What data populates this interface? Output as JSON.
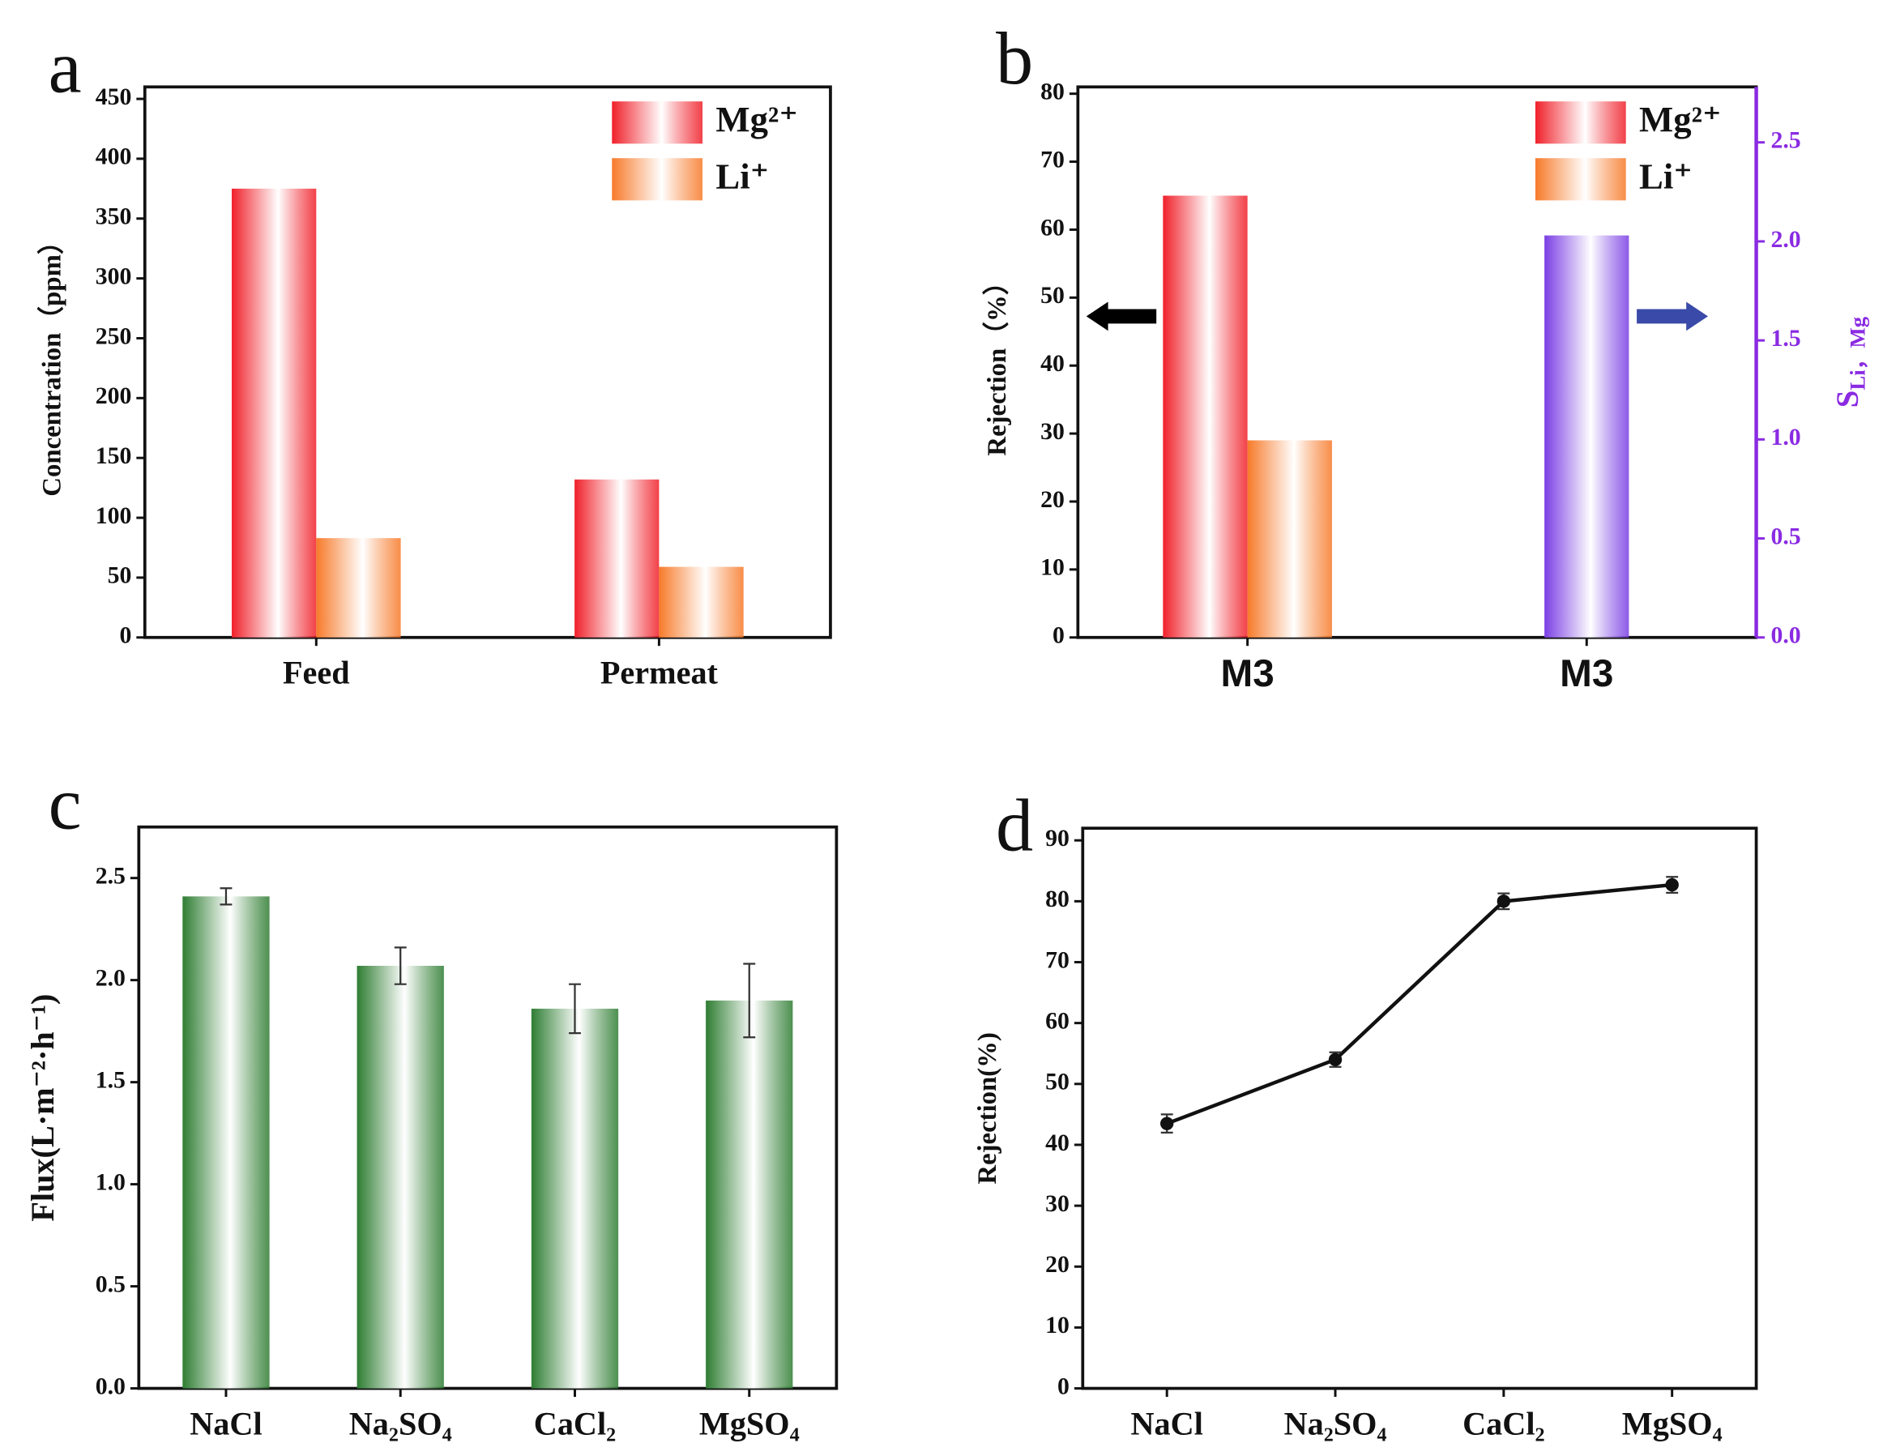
{
  "chart_data": [
    {
      "type": "bar",
      "panel": "a",
      "ylabel": "Concentration（ppm）",
      "categories": [
        "Feed",
        "Permeat"
      ],
      "series": [
        {
          "name": "Mg²⁺",
          "color": "#f0202a",
          "values": [
            375,
            132
          ]
        },
        {
          "name": "Li⁺",
          "color": "#f77a2a",
          "values": [
            83,
            59
          ]
        }
      ],
      "ylim": [
        0,
        460
      ],
      "yticks": [
        0,
        50,
        100,
        150,
        200,
        250,
        300,
        350,
        400,
        450
      ],
      "legend": "upper right"
    },
    {
      "type": "bar",
      "panel": "b",
      "ylabel": "Rejection（%）",
      "y2label": {
        "main": "S",
        "sub": "Li，Mg"
      },
      "categories": [
        "M3",
        "M3"
      ],
      "series": [
        {
          "name": "Mg²⁺",
          "color": "#f0202a",
          "values": [
            65,
            null
          ]
        },
        {
          "name": "Li⁺",
          "color": "#f77a2a",
          "values": [
            29,
            null
          ]
        },
        {
          "color": "#7b3fe4",
          "values": [
            null,
            2.03
          ],
          "axis": "y2"
        }
      ],
      "ylim": [
        0,
        81
      ],
      "yticks": [
        0,
        10,
        20,
        30,
        40,
        50,
        60,
        70,
        80
      ],
      "y2lim": [
        0,
        2.78
      ],
      "y2ticks": [
        {
          "value": 0,
          "label": "0.0"
        },
        0.5,
        {
          "value": 1,
          "label": "1.0"
        },
        1.5,
        {
          "value": 2,
          "label": "2.0"
        },
        2.5
      ],
      "y2color": "#8a2be2",
      "legend": "upper right"
    },
    {
      "type": "bar",
      "panel": "c",
      "ylabel": "Flux(L·m⁻²·h⁻¹)",
      "categories": [
        "NaCl",
        "Na₂SO₄",
        "CaCl₂",
        "MgSO₄"
      ],
      "series": [
        {
          "color": "#2e7d32",
          "values": [
            2.41,
            2.07,
            1.86,
            1.9
          ],
          "errors": [
            0.04,
            0.09,
            0.12,
            0.18
          ]
        }
      ],
      "ylim": [
        0,
        2.75
      ],
      "yticks": [
        {
          "value": 0,
          "label": "0.0"
        },
        0.5,
        {
          "value": 1,
          "label": "1.0"
        },
        1.5,
        {
          "value": 2,
          "label": "2.0"
        },
        2.5
      ]
    },
    {
      "type": "line",
      "panel": "d",
      "ylabel": "Rejection(%)",
      "categories": [
        "NaCl",
        "Na₂SO₄",
        "CaCl₂",
        "MgSO₄"
      ],
      "series": [
        {
          "color": "#111111",
          "values": [
            43.5,
            54,
            80,
            82.7
          ],
          "errors": [
            1.5,
            1.2,
            1.3,
            1.3
          ]
        }
      ],
      "ylim": [
        0,
        92
      ],
      "yticks": [
        0,
        10,
        20,
        30,
        40,
        50,
        60,
        70,
        80,
        90
      ]
    }
  ]
}
